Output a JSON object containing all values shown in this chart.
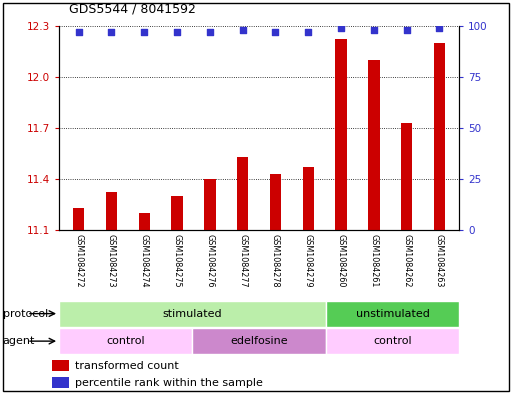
{
  "title": "GDS5544 / 8041592",
  "samples": [
    "GSM1084272",
    "GSM1084273",
    "GSM1084274",
    "GSM1084275",
    "GSM1084276",
    "GSM1084277",
    "GSM1084278",
    "GSM1084279",
    "GSM1084260",
    "GSM1084261",
    "GSM1084262",
    "GSM1084263"
  ],
  "bar_values": [
    11.23,
    11.32,
    11.2,
    11.3,
    11.4,
    11.53,
    11.43,
    11.47,
    12.22,
    12.1,
    11.73,
    12.2
  ],
  "percentile_values": [
    97,
    97,
    97,
    97,
    97,
    98,
    97,
    97,
    99,
    98,
    98,
    99
  ],
  "ylim_left": [
    11.1,
    12.3
  ],
  "ylim_right": [
    0,
    100
  ],
  "yticks_left": [
    11.1,
    11.4,
    11.7,
    12.0,
    12.3
  ],
  "yticks_right": [
    0,
    25,
    50,
    75,
    100
  ],
  "bar_color": "#cc0000",
  "dot_color": "#3333cc",
  "grid_color": "#000000",
  "protocol_groups": [
    {
      "label": "stimulated",
      "start": 0,
      "end": 8,
      "color": "#bbeeaa"
    },
    {
      "label": "unstimulated",
      "start": 8,
      "end": 12,
      "color": "#55cc55"
    }
  ],
  "agent_groups": [
    {
      "label": "control",
      "start": 0,
      "end": 4,
      "color": "#ffccff"
    },
    {
      "label": "edelfosine",
      "start": 4,
      "end": 8,
      "color": "#cc88cc"
    },
    {
      "label": "control",
      "start": 8,
      "end": 12,
      "color": "#ffccff"
    }
  ],
  "legend_bar_label": "transformed count",
  "legend_dot_label": "percentile rank within the sample",
  "left_tick_color": "#cc0000",
  "right_tick_color": "#3333cc",
  "bg_color": "#ffffff",
  "sample_bg_color": "#cccccc",
  "protocol_label": "protocol",
  "agent_label": "agent",
  "bar_width": 0.35
}
